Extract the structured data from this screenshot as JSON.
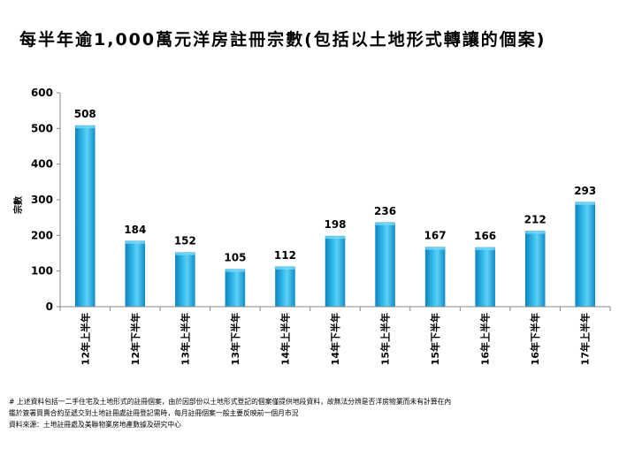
{
  "title": "每半年逾1,000萬元洋房註冊宗數(包括以土地形式轉讓的個案)",
  "chart_data": {
    "type": "bar",
    "title": "每半年逾1,000萬元洋房註冊宗數(包括以土地形式轉讓的個案)",
    "xlabel": "",
    "ylabel": "宗數",
    "ylim": [
      0,
      600
    ],
    "yticks": [
      0,
      100,
      200,
      300,
      400,
      500,
      600
    ],
    "categories": [
      "12年上半年",
      "12年下半年",
      "13年上半年",
      "13年下半年",
      "14年上半年",
      "14年下半年",
      "15年上半年",
      "15年下半年",
      "16年上半年",
      "16年下半年",
      "17年上半年"
    ],
    "values": [
      508,
      184,
      152,
      105,
      112,
      198,
      236,
      167,
      166,
      212,
      293
    ],
    "bar_color": "#29b3e8",
    "bar_color_dark": "#0d86c2"
  },
  "footnote": {
    "line1": "# 上述資料包括一二手住宅及土地形式的註冊個案，由於因部份以土地形式登記的個案僅提供地段資料，故無法分辨是否洋房物業而未有計算在內",
    "line2": "鑑於簽署買賣合約至遞交到土地註冊處註冊登記需時，每月註冊個案一般主要反映前一個月市況",
    "line3": "資料來源：土地註冊處及美聯物業房地產數據及研究中心"
  }
}
